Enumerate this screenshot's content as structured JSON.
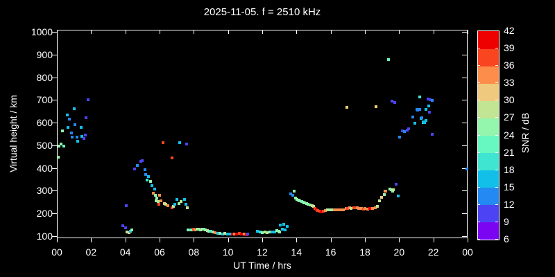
{
  "chart_data": {
    "type": "scatter",
    "title": "2025-11-05. f = 2510 kHz",
    "xlabel": "UT Time / hrs",
    "ylabel": "Virtual height / km",
    "colorbar_label": "SNR / dB",
    "xlim": [
      0,
      24
    ],
    "ylim": [
      90,
      1010
    ],
    "grid": false,
    "background": "#000000",
    "foreground": "#ffffff",
    "x_ticks": [
      {
        "t": 0,
        "label": "00"
      },
      {
        "t": 2,
        "label": "02"
      },
      {
        "t": 4,
        "label": "04"
      },
      {
        "t": 6,
        "label": "06"
      },
      {
        "t": 8,
        "label": "08"
      },
      {
        "t": 10,
        "label": "10"
      },
      {
        "t": 12,
        "label": "12"
      },
      {
        "t": 14,
        "label": "14"
      },
      {
        "t": 16,
        "label": "16"
      },
      {
        "t": 18,
        "label": "18"
      },
      {
        "t": 20,
        "label": "20"
      },
      {
        "t": 22,
        "label": "22"
      },
      {
        "t": 24,
        "label": "00"
      }
    ],
    "y_ticks": [
      100,
      200,
      300,
      400,
      500,
      600,
      700,
      800,
      900,
      1000
    ],
    "colorbar": {
      "min": 6,
      "max": 42,
      "step": 3,
      "tick_labels": [
        6,
        9,
        12,
        15,
        18,
        21,
        24,
        27,
        30,
        33,
        36,
        39,
        42
      ],
      "colors": [
        "#7B05F3",
        "#4C44F4",
        "#2489F2",
        "#12BFE8",
        "#40E5D2",
        "#66F8C0",
        "#93F6AC",
        "#C2E593",
        "#EFC97D",
        "#FC8D4A",
        "#FA4521",
        "#EE0000"
      ]
    },
    "points_format": [
      "ut_hours",
      "virtual_height_km",
      "snr_db"
    ],
    "points": [
      [
        0.08,
        447,
        25.5
      ],
      [
        0.12,
        496,
        25.5
      ],
      [
        0.24,
        505,
        25.5
      ],
      [
        0.33,
        565,
        25.5
      ],
      [
        0.41,
        496,
        22.5
      ],
      [
        0.61,
        635,
        16.5
      ],
      [
        0.65,
        580,
        16.5
      ],
      [
        0.73,
        616,
        13.5
      ],
      [
        0.85,
        556,
        13.5
      ],
      [
        0.89,
        535,
        13.5
      ],
      [
        1.02,
        662,
        16.5
      ],
      [
        1.05,
        592,
        13.5
      ],
      [
        1.18,
        535,
        13.5
      ],
      [
        1.22,
        517,
        16.5
      ],
      [
        1.42,
        580,
        16.5
      ],
      [
        1.46,
        538,
        16.5
      ],
      [
        1.59,
        529,
        10.5
      ],
      [
        1.67,
        544,
        10.5
      ],
      [
        1.71,
        622,
        10.5
      ],
      [
        1.83,
        701,
        10.5
      ],
      [
        3.87,
        146,
        10.5
      ],
      [
        4.0,
        135,
        10.5
      ],
      [
        4.05,
        235,
        10.5
      ],
      [
        4.1,
        116,
        28.5
      ],
      [
        4.2,
        113,
        31.5
      ],
      [
        4.28,
        122,
        16.5
      ],
      [
        4.36,
        127,
        25.5
      ],
      [
        4.56,
        397,
        10.5
      ],
      [
        4.72,
        412,
        13.5
      ],
      [
        4.9,
        428,
        10.5
      ],
      [
        5.0,
        433,
        10.5
      ],
      [
        5.13,
        392,
        13.5
      ],
      [
        5.2,
        370,
        13.5
      ],
      [
        5.28,
        346,
        19.5
      ],
      [
        5.37,
        362,
        16.5
      ],
      [
        5.47,
        340,
        25.5
      ],
      [
        5.56,
        322,
        16.5
      ],
      [
        5.64,
        290,
        34.5
      ],
      [
        5.7,
        307,
        16.5
      ],
      [
        5.74,
        278,
        25.5
      ],
      [
        5.78,
        254,
        25.5
      ],
      [
        5.84,
        268,
        25.5
      ],
      [
        5.92,
        251,
        28.5
      ],
      [
        5.94,
        240,
        37.5
      ],
      [
        6.01,
        278,
        34.5
      ],
      [
        6.08,
        254,
        34.5
      ],
      [
        6.19,
        512,
        37.5
      ],
      [
        6.29,
        243,
        31.5
      ],
      [
        6.38,
        240,
        28.5
      ],
      [
        6.49,
        234,
        34.5
      ],
      [
        6.71,
        445,
        37.5
      ],
      [
        6.72,
        225,
        37.5
      ],
      [
        6.8,
        232,
        28.5
      ],
      [
        6.9,
        240,
        16.5
      ],
      [
        7.03,
        261,
        16.5
      ],
      [
        7.13,
        243,
        25.5
      ],
      [
        7.19,
        512,
        16.5
      ],
      [
        7.26,
        251,
        28.5
      ],
      [
        7.44,
        261,
        16.5
      ],
      [
        7.53,
        240,
        16.5
      ],
      [
        7.57,
        507,
        10.5
      ],
      [
        7.64,
        225,
        28.5
      ],
      [
        7.68,
        126,
        25.5
      ],
      [
        7.78,
        126,
        19.5
      ],
      [
        7.88,
        127,
        25.5
      ],
      [
        7.98,
        129,
        37.5
      ],
      [
        8.08,
        128,
        34.5
      ],
      [
        8.18,
        130,
        28.5
      ],
      [
        8.28,
        129,
        25.5
      ],
      [
        8.38,
        127,
        25.5
      ],
      [
        8.48,
        130,
        28.5
      ],
      [
        8.58,
        129,
        22.5
      ],
      [
        8.68,
        126,
        25.5
      ],
      [
        8.78,
        124,
        28.5
      ],
      [
        8.88,
        122,
        25.5
      ],
      [
        8.98,
        120,
        19.5
      ],
      [
        9.12,
        117,
        28.5
      ],
      [
        9.26,
        115,
        34.5
      ],
      [
        9.4,
        112,
        16.5
      ],
      [
        9.54,
        110,
        25.5
      ],
      [
        9.68,
        109,
        16.5
      ],
      [
        9.82,
        110,
        28.5
      ],
      [
        9.96,
        109,
        16.5
      ],
      [
        10.1,
        107,
        16.5
      ],
      [
        10.24,
        109,
        40.5
      ],
      [
        10.38,
        107,
        34.5
      ],
      [
        10.52,
        109,
        40.5
      ],
      [
        10.66,
        110,
        37.5
      ],
      [
        10.8,
        109,
        40.5
      ],
      [
        10.94,
        107,
        34.5
      ],
      [
        11.05,
        106,
        40.5
      ],
      [
        11.15,
        109,
        10.5
      ],
      [
        11.73,
        122,
        16.5
      ],
      [
        11.88,
        116,
        19.5
      ],
      [
        12.02,
        113,
        25.5
      ],
      [
        12.16,
        116,
        25.5
      ],
      [
        12.3,
        113,
        28.5
      ],
      [
        12.44,
        119,
        25.5
      ],
      [
        12.58,
        116,
        16.5
      ],
      [
        12.72,
        119,
        16.5
      ],
      [
        12.86,
        125,
        25.5
      ],
      [
        12.97,
        122,
        25.5
      ],
      [
        13.02,
        116,
        25.5
      ],
      [
        13.05,
        148,
        16.5
      ],
      [
        13.16,
        130,
        16.5
      ],
      [
        13.25,
        150,
        16.5
      ],
      [
        13.32,
        126,
        16.5
      ],
      [
        13.45,
        143,
        16.5
      ],
      [
        13.66,
        286,
        13.5
      ],
      [
        13.8,
        280,
        13.5
      ],
      [
        13.85,
        298,
        25.5
      ],
      [
        13.96,
        266,
        25.5
      ],
      [
        14.03,
        261,
        25.5
      ],
      [
        14.12,
        259,
        25.5
      ],
      [
        14.2,
        256,
        25.5
      ],
      [
        14.3,
        251,
        22.5
      ],
      [
        14.39,
        249,
        25.5
      ],
      [
        14.49,
        246,
        25.5
      ],
      [
        14.6,
        244,
        25.5
      ],
      [
        14.69,
        241,
        25.5
      ],
      [
        14.79,
        238,
        25.5
      ],
      [
        14.9,
        235,
        28.5
      ],
      [
        14.99,
        232,
        28.5
      ],
      [
        15.08,
        222,
        37.5
      ],
      [
        15.17,
        216,
        40.5
      ],
      [
        15.26,
        211,
        37.5
      ],
      [
        15.35,
        209,
        37.5
      ],
      [
        15.45,
        206,
        40.5
      ],
      [
        15.55,
        209,
        37.5
      ],
      [
        15.68,
        211,
        34.5
      ],
      [
        15.8,
        214,
        28.5
      ],
      [
        15.9,
        216,
        25.5
      ],
      [
        16.0,
        214,
        28.5
      ],
      [
        16.1,
        216,
        25.5
      ],
      [
        16.2,
        214,
        34.5
      ],
      [
        16.35,
        214,
        34.5
      ],
      [
        16.5,
        216,
        34.5
      ],
      [
        16.6,
        214,
        34.5
      ],
      [
        16.75,
        216,
        34.5
      ],
      [
        16.9,
        220,
        34.5
      ],
      [
        16.93,
        667,
        31.5
      ],
      [
        17.0,
        222,
        37.5
      ],
      [
        17.1,
        224,
        34.5
      ],
      [
        17.2,
        222,
        28.5
      ],
      [
        17.35,
        224,
        37.5
      ],
      [
        17.45,
        226,
        37.5
      ],
      [
        17.55,
        224,
        34.5
      ],
      [
        17.65,
        222,
        34.5
      ],
      [
        17.8,
        220,
        34.5
      ],
      [
        17.9,
        218,
        37.5
      ],
      [
        18.0,
        220,
        34.5
      ],
      [
        18.15,
        218,
        34.5
      ],
      [
        18.3,
        220,
        40.5
      ],
      [
        18.45,
        222,
        34.5
      ],
      [
        18.6,
        224,
        34.5
      ],
      [
        18.66,
        672,
        31.5
      ],
      [
        18.72,
        232,
        28.5
      ],
      [
        18.86,
        254,
        28.5
      ],
      [
        18.98,
        269,
        31.5
      ],
      [
        19.14,
        284,
        25.5
      ],
      [
        19.18,
        299,
        28.5
      ],
      [
        19.22,
        297,
        34.5
      ],
      [
        19.39,
        878,
        22.5
      ],
      [
        19.47,
        306,
        25.5
      ],
      [
        19.56,
        304,
        25.5
      ],
      [
        19.6,
        695,
        10.5
      ],
      [
        19.64,
        297,
        25.5
      ],
      [
        19.67,
        305,
        28.5
      ],
      [
        19.73,
        690,
        10.5
      ],
      [
        19.84,
        329,
        10.5
      ],
      [
        19.95,
        275,
        16.5
      ],
      [
        20.04,
        536,
        13.5
      ],
      [
        20.17,
        564,
        10.5
      ],
      [
        20.31,
        561,
        13.5
      ],
      [
        20.49,
        568,
        10.5
      ],
      [
        20.54,
        574,
        10.5
      ],
      [
        20.78,
        626,
        13.5
      ],
      [
        20.92,
        596,
        16.5
      ],
      [
        21.06,
        657,
        13.5
      ],
      [
        21.1,
        655,
        13.5
      ],
      [
        21.19,
        659,
        13.5
      ],
      [
        21.22,
        715,
        19.5
      ],
      [
        21.3,
        619,
        16.5
      ],
      [
        21.33,
        622,
        13.5
      ],
      [
        21.39,
        601,
        19.5
      ],
      [
        21.42,
        603,
        16.5
      ],
      [
        21.47,
        601,
        16.5
      ],
      [
        21.56,
        657,
        16.5
      ],
      [
        21.57,
        610,
        16.5
      ],
      [
        21.67,
        705,
        10.5
      ],
      [
        21.71,
        674,
        16.5
      ],
      [
        21.76,
        645,
        10.5
      ],
      [
        21.83,
        700,
        10.5
      ],
      [
        21.94,
        697,
        13.5
      ],
      [
        21.94,
        550,
        10.5
      ],
      [
        23.97,
        395,
        13.5
      ]
    ]
  }
}
